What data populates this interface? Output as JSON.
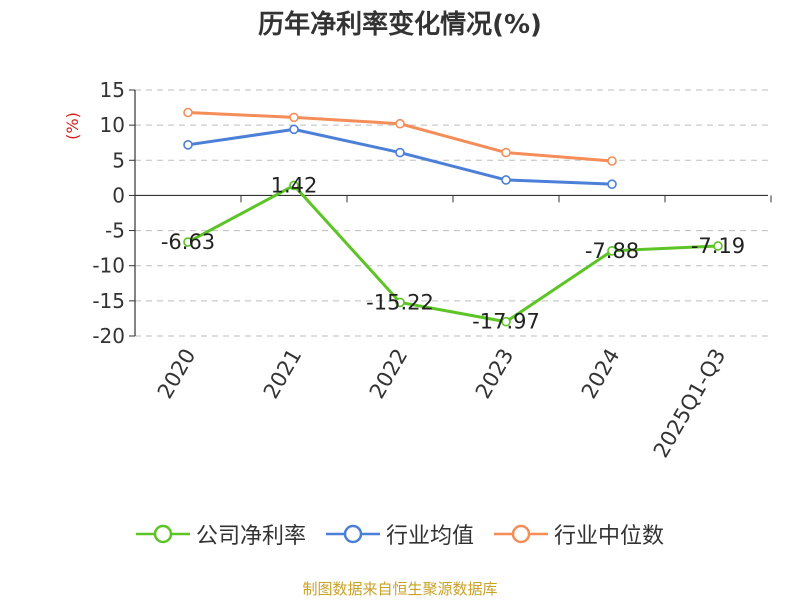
{
  "chart_data": {
    "type": "line",
    "title": "历年净利率变化情况(%)",
    "ylabel": "(%)",
    "xlabel": "",
    "categories": [
      "2020",
      "2021",
      "2022",
      "2023",
      "2024",
      "2025Q1-Q3"
    ],
    "ylim": [
      -20,
      15
    ],
    "yticks": [
      15,
      10,
      5,
      0,
      -5,
      -10,
      -15,
      -20
    ],
    "grid": true,
    "legend_position": "bottom",
    "series": [
      {
        "name": "公司净利率",
        "color": "#5cc425",
        "values": [
          -6.63,
          1.42,
          -15.22,
          -17.97,
          -7.88,
          -7.19
        ],
        "labels": [
          "-6.63",
          "1.42",
          "-15.22",
          "-17.97",
          "-7.88",
          "-7.19"
        ]
      },
      {
        "name": "行业均值",
        "color": "#4b7fd8",
        "values": [
          7.2,
          9.4,
          6.1,
          2.2,
          1.6,
          null
        ]
      },
      {
        "name": "行业中位数",
        "color": "#f58d58",
        "values": [
          11.8,
          11.1,
          10.2,
          6.1,
          4.9,
          null
        ]
      }
    ]
  },
  "source": {
    "text": "制图数据来自恒生聚源数据库",
    "color": "#c9a227"
  },
  "ylabel_color": "#d42020"
}
